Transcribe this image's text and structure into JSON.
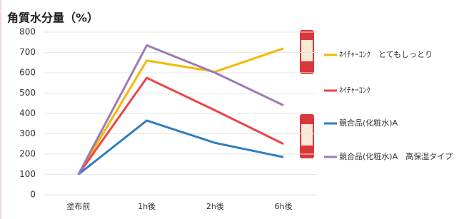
{
  "chart_data": {
    "type": "line",
    "title": "角質水分量（%）",
    "categories": [
      "塗布前",
      "1h後",
      "2h後",
      "6h後"
    ],
    "series": [
      {
        "name": "ﾈｲﾁｬｰｺﾝｸ　とてもしっとり",
        "color": "#f5b800",
        "values": [
          100,
          660,
          605,
          720
        ]
      },
      {
        "name": "ﾈｲﾁｬｰｺﾝｸ",
        "color": "#ee4444",
        "values": [
          100,
          575,
          415,
          250
        ]
      },
      {
        "name": "競合品(化粧水)A",
        "color": "#2f7dc1",
        "values": [
          100,
          365,
          255,
          185
        ]
      },
      {
        "name": "競合品(化粧水)A　高保湿タイプ",
        "color": "#9b7bb5",
        "values": [
          100,
          735,
          600,
          440
        ]
      }
    ],
    "ylim": [
      0,
      800
    ],
    "yticks": [
      0,
      100,
      200,
      300,
      400,
      500,
      600,
      700,
      800
    ],
    "grid": true
  }
}
